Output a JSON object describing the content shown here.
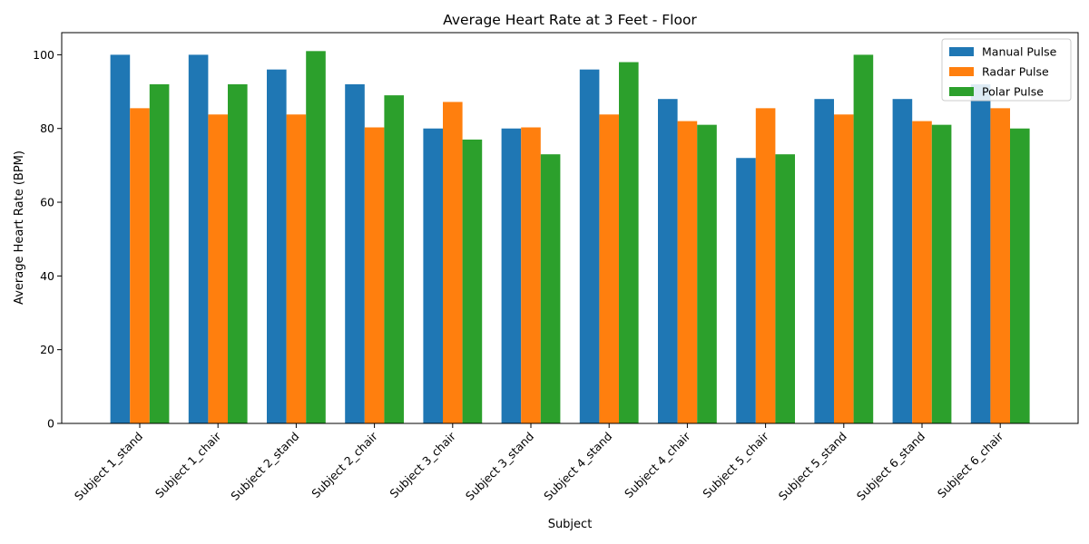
{
  "chart_data": {
    "type": "bar",
    "title": "Average Heart Rate at 3 Feet - Floor",
    "xlabel": "Subject",
    "ylabel": "Average Heart Rate (BPM)",
    "ylim": [
      0,
      106
    ],
    "yticks": [
      0,
      20,
      40,
      60,
      80,
      100
    ],
    "grid": false,
    "legend_position": "top-right",
    "categories": [
      "Subject 1_stand",
      "Subject 1_chair",
      "Subject 2_stand",
      "Subject 2_chair",
      "Subject 3_chair",
      "Subject 3_stand",
      "Subject 4_stand",
      "Subject 4_chair",
      "Subject 5_chair",
      "Subject 5_stand",
      "Subject 6_stand",
      "Subject 6_chair"
    ],
    "series": [
      {
        "name": "Manual Pulse",
        "color": "#1f77b4",
        "values": [
          100,
          100,
          96,
          92,
          80,
          80,
          96,
          88,
          72,
          88,
          88,
          92
        ]
      },
      {
        "name": "Radar Pulse",
        "color": "#ff7f0e",
        "values": [
          85.5,
          83.8,
          83.8,
          80.3,
          87.2,
          80.3,
          83.8,
          82,
          85.5,
          83.8,
          82,
          85.5
        ]
      },
      {
        "name": "Polar Pulse",
        "color": "#2ca02c",
        "values": [
          92,
          92,
          101,
          89,
          77,
          73,
          98,
          81,
          73,
          100,
          81,
          80
        ]
      }
    ]
  }
}
